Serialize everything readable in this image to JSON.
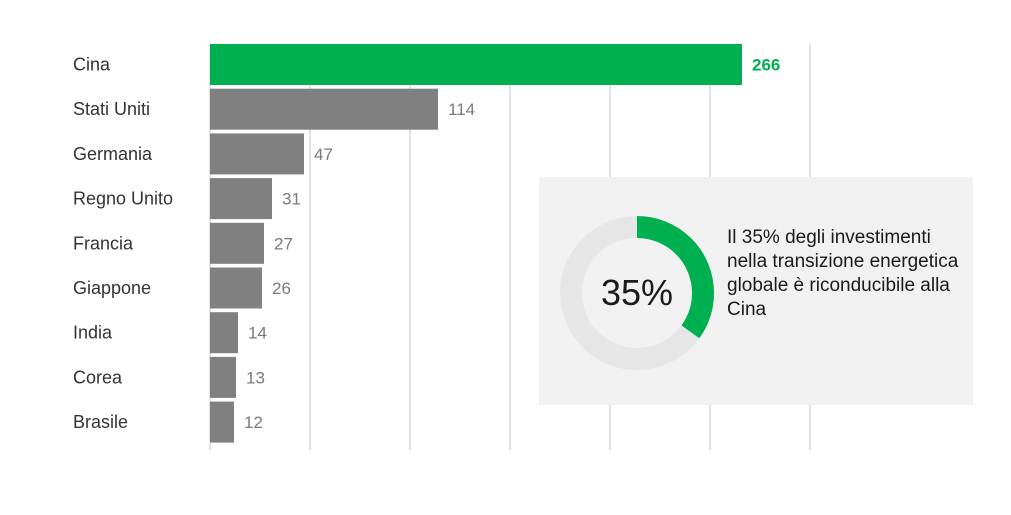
{
  "chart_data": {
    "type": "bar",
    "orientation": "horizontal",
    "categories": [
      "Cina",
      "Stati Uniti",
      "Germania",
      "Regno Unito",
      "Francia",
      "Giappone",
      "India",
      "Corea",
      "Brasile"
    ],
    "values": [
      266,
      114,
      47,
      31,
      27,
      26,
      14,
      13,
      12
    ],
    "value_labels": [
      "266",
      "114",
      "47",
      "31",
      "27",
      "26",
      "14",
      "13",
      "12"
    ],
    "highlight_index": 0,
    "xlim": [
      0,
      300
    ],
    "grid": true,
    "title": "",
    "xlabel": "",
    "ylabel": ""
  },
  "colors": {
    "highlight": "#00b050",
    "bar": "#808080",
    "grid": "#d9d9d9",
    "donut_track": "#e6e6e6",
    "box_bg": "#f1f1f1"
  },
  "info_box": {
    "percent_value": 35,
    "percent_label": "35%",
    "text": "Il 35% degli investimenti nella transizione energetica globale è riconducibile alla Cina"
  }
}
